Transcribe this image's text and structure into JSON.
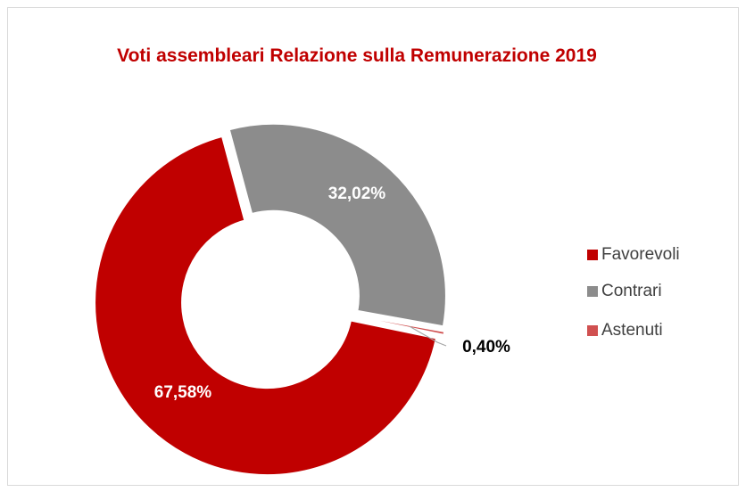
{
  "chart_data": {
    "type": "donut",
    "title": "Voti assembleari Relazione sulla Remunerazione 2019",
    "categories": [
      "Favorevoli",
      "Contrari",
      "Astenuti"
    ],
    "values": [
      67.58,
      32.02,
      0.4
    ],
    "value_labels": [
      "67,58%",
      "32,02%",
      "0,40%"
    ],
    "colors": [
      "#c00000",
      "#8c8c8c",
      "#d05050"
    ],
    "legend": "right"
  }
}
